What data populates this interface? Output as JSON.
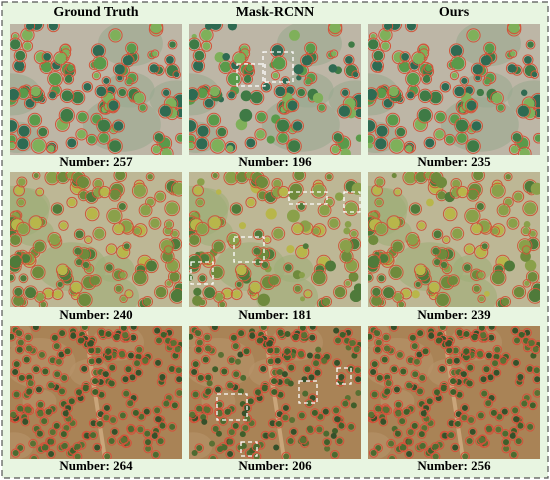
{
  "header": {
    "columns": [
      "Ground Truth",
      "Mask-RCNN",
      "Ours"
    ]
  },
  "rows": [
    {
      "captions": [
        "Number: 257",
        "Number: 196",
        "Number: 235"
      ]
    },
    {
      "captions": [
        "Number: 240",
        "Number: 181",
        "Number: 239"
      ]
    },
    {
      "captions": [
        "Number: 264",
        "Number: 206",
        "Number: 256"
      ]
    }
  ]
}
